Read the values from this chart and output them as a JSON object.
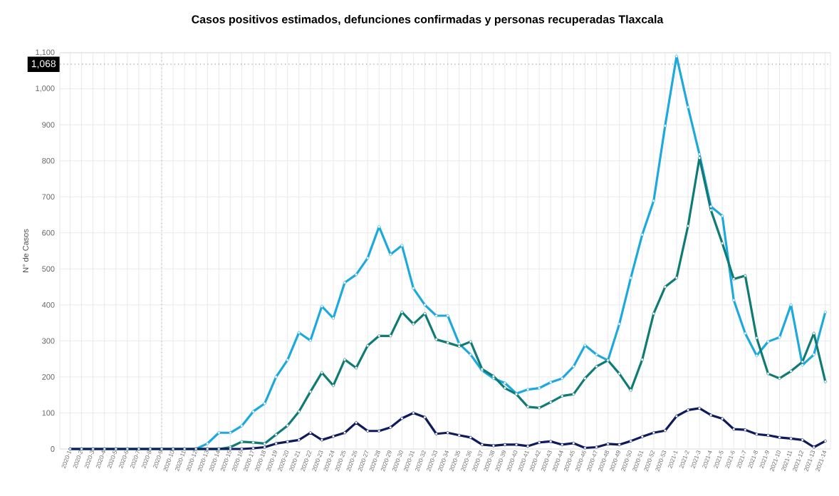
{
  "chart_data": {
    "type": "line",
    "title": "Casos positivos estimados, defunciones confirmadas y personas recuperadas Tlaxcala",
    "ylabel": "N° de Casos",
    "categories": [
      "2020-1",
      "2020-2",
      "2020-3",
      "2020-4",
      "2020-5",
      "2020-6",
      "2020-7",
      "2020-8",
      "2020-9",
      "2020-10",
      "2020-11",
      "2020-12",
      "2020-13",
      "2020-14",
      "2020-15",
      "2020-16",
      "2020-17",
      "2020-18",
      "2020-19",
      "2020-20",
      "2020-21",
      "2020-22",
      "2020-23",
      "2020-24",
      "2020-25",
      "2020-26",
      "2020-27",
      "2020-28",
      "2020-29",
      "2020-30",
      "2020-31",
      "2020-32",
      "2020-33",
      "2020-34",
      "2020-35",
      "2020-36",
      "2020-37",
      "2020-38",
      "2020-39",
      "2020-40",
      "2020-41",
      "2020-42",
      "2020-43",
      "2020-44",
      "2020-45",
      "2020-46",
      "2020-47",
      "2020-48",
      "2020-49",
      "2020-50",
      "2020-51",
      "2020-52",
      "2020-53",
      "2021-1",
      "2021-2",
      "2021-3",
      "2021-4",
      "2021-5",
      "2021-6",
      "2021-7",
      "2021-8",
      "2021-9",
      "2021-10",
      "2021-11",
      "2021-12",
      "2021-13",
      "2021-14"
    ],
    "series": [
      {
        "color": "#1ba9de",
        "values": [
          null,
          null,
          null,
          null,
          null,
          null,
          null,
          null,
          null,
          null,
          null,
          0,
          15,
          45,
          45,
          64,
          104,
          126,
          200,
          247,
          323,
          301,
          396,
          363,
          462,
          484,
          530,
          617,
          540,
          565,
          446,
          400,
          370,
          370,
          292,
          262,
          218,
          196,
          183,
          154,
          165,
          169,
          185,
          196,
          229,
          288,
          262,
          246,
          347,
          475,
          595,
          689,
          897,
          1090,
          949,
          818,
          673,
          647,
          413,
          321,
          259,
          298,
          310,
          400,
          233,
          262,
          380
        ]
      },
      {
        "color": "#0f7b75",
        "values": [
          0,
          0,
          0,
          0,
          0,
          0,
          0,
          0,
          0,
          0,
          0,
          0,
          0,
          0,
          5,
          20,
          18,
          15,
          40,
          65,
          104,
          159,
          212,
          176,
          248,
          225,
          287,
          314,
          314,
          380,
          347,
          376,
          304,
          295,
          285,
          298,
          222,
          202,
          169,
          152,
          117,
          114,
          130,
          147,
          152,
          196,
          229,
          246,
          209,
          163,
          248,
          376,
          450,
          475,
          619,
          808,
          663,
          571,
          472,
          481,
          308,
          209,
          196,
          216,
          242,
          321,
          187
        ]
      },
      {
        "color": "#0d1b5e",
        "values": [
          0,
          0,
          0,
          0,
          0,
          0,
          0,
          0,
          0,
          0,
          0,
          0,
          0,
          0,
          0,
          0,
          2,
          5,
          15,
          20,
          25,
          45,
          25,
          35,
          45,
          73,
          50,
          50,
          60,
          85,
          100,
          88,
          42,
          45,
          38,
          32,
          12,
          9,
          12,
          12,
          8,
          18,
          21,
          12,
          16,
          3,
          5,
          14,
          12,
          22,
          34,
          45,
          51,
          91,
          108,
          113,
          94,
          84,
          55,
          53,
          41,
          38,
          32,
          29,
          25,
          5,
          22
        ]
      }
    ],
    "ylim": [
      0,
      1100
    ],
    "yticks": [
      0,
      100,
      200,
      300,
      400,
      500,
      600,
      700,
      800,
      900,
      {
        "value": 1000,
        "label": "1,000"
      },
      {
        "value": 1100,
        "label": "1,100"
      }
    ],
    "ref_lines": [
      {
        "axis": "y",
        "value": 1068,
        "label": "1,068",
        "color": "#999999",
        "line_style": "dotted"
      },
      {
        "axis": "x",
        "value": "2020-9",
        "color": "#bbbbbb",
        "line_style": "dotted"
      }
    ],
    "grid": true,
    "marker": "circle",
    "line_style": "solid"
  }
}
